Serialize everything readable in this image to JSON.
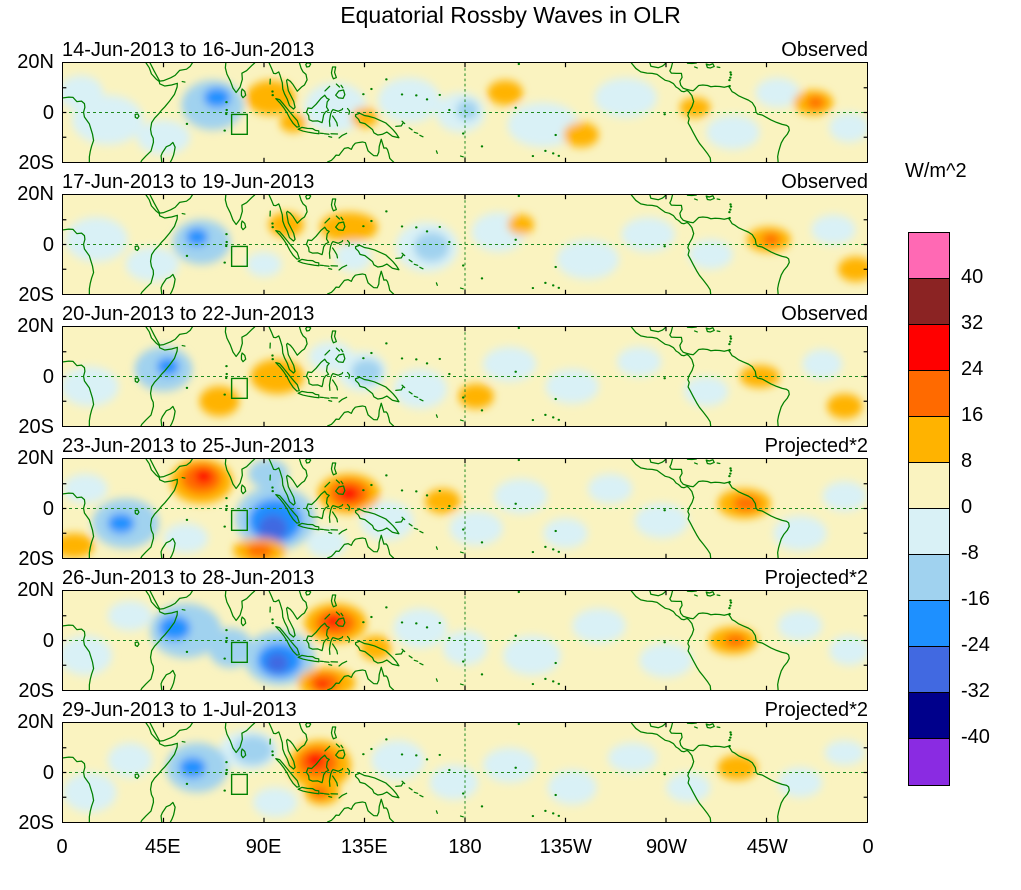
{
  "figure": {
    "title": "Equatorial Rossby Waves in OLR",
    "units_label": "W/m^2"
  },
  "axes": {
    "y_tick_labels": [
      "20N",
      "0",
      "20S"
    ],
    "x_tick_labels": [
      "0",
      "45E",
      "90E",
      "135E",
      "180",
      "135W",
      "90W",
      "45W",
      "0"
    ]
  },
  "chart_data": {
    "type": "heatmap",
    "subtype": "filled-contour longitude-latitude anomaly map panels with coastlines",
    "title": "Equatorial Rossby Waves in OLR",
    "x_axis": {
      "ticks": [
        "0",
        "45E",
        "90E",
        "135E",
        "180",
        "135W",
        "90W",
        "45W",
        "0"
      ],
      "range_deg": [
        0,
        360
      ]
    },
    "y_axis": {
      "ticks": [
        "20N",
        "0",
        "20S"
      ],
      "range_deg": [
        -20,
        20
      ]
    },
    "colorbar": {
      "label": "W/m^2",
      "tick_values": [
        40,
        32,
        24,
        16,
        8,
        0,
        -8,
        -16,
        -24,
        -32,
        -40
      ],
      "colors_top_to_bottom": [
        "#FF69B4",
        "#8B2323",
        "#FF0000",
        "#FF6A00",
        "#FFB300",
        "#FAF3C0",
        "#D9F1F6",
        "#A0D2EF",
        "#1E90FF",
        "#4169E1",
        "#00008B",
        "#8A2BE2"
      ]
    },
    "map_overlays": {
      "coastline_color": "#008000",
      "equator_dashed": true,
      "dateline_dashed": true,
      "index_box": {
        "lon": [
          75.5,
          82.5
        ],
        "lat": [
          -8.8,
          -0.8
        ]
      }
    },
    "anomaly_encoding": "[lon_deg_east, lat_deg_north, rx_deg, ry_deg, colorband_index_into_colors_top_to_bottom]",
    "panels": [
      {
        "date_range": "14-Jun-2013 to 16-Jun-2013",
        "label": "Observed",
        "anomalies": [
          [
            20,
            -3,
            16,
            10,
            6
          ],
          [
            8,
            8,
            10,
            7,
            6
          ],
          [
            45,
            -10,
            12,
            7,
            6
          ],
          [
            122,
            2,
            14,
            10,
            6
          ],
          [
            155,
            5,
            14,
            9,
            6
          ],
          [
            178,
            0,
            11,
            8,
            6
          ],
          [
            215,
            -5,
            16,
            9,
            6
          ],
          [
            252,
            6,
            14,
            8,
            6
          ],
          [
            300,
            -8,
            12,
            7,
            6
          ],
          [
            320,
            8,
            10,
            6,
            6
          ],
          [
            352,
            -6,
            9,
            6,
            6
          ],
          [
            67,
            3,
            14,
            10,
            7
          ],
          [
            181,
            1,
            5,
            4,
            7
          ],
          [
            69,
            6,
            6,
            4,
            8
          ],
          [
            93,
            6,
            11,
            7,
            4
          ],
          [
            103,
            -4,
            6,
            4,
            4
          ],
          [
            135,
            -2,
            6,
            4,
            4
          ],
          [
            198,
            8,
            8,
            5,
            4
          ],
          [
            232,
            -9,
            8,
            5,
            4
          ],
          [
            283,
            2,
            7,
            4,
            4
          ],
          [
            336,
            4,
            9,
            5,
            4
          ],
          [
            337,
            4,
            4,
            2.5,
            3
          ]
        ]
      },
      {
        "date_range": "17-Jun-2013 to 19-Jun-2013",
        "label": "Observed",
        "anomalies": [
          [
            15,
            2,
            14,
            9,
            6
          ],
          [
            40,
            -8,
            12,
            7,
            6
          ],
          [
            90,
            -8,
            8,
            5,
            6
          ],
          [
            130,
            -5,
            8,
            6,
            6
          ],
          [
            163,
            -1,
            14,
            10,
            6
          ],
          [
            195,
            5,
            12,
            8,
            6
          ],
          [
            235,
            -6,
            14,
            8,
            6
          ],
          [
            262,
            4,
            12,
            7,
            6
          ],
          [
            290,
            -4,
            10,
            6,
            6
          ],
          [
            345,
            6,
            10,
            6,
            6
          ],
          [
            62,
            1,
            13,
            9,
            7
          ],
          [
            165,
            -1,
            8,
            6,
            7
          ],
          [
            60,
            3,
            5,
            3.5,
            8
          ],
          [
            100,
            8,
            8,
            5,
            4
          ],
          [
            128,
            7,
            13,
            6,
            4
          ],
          [
            205,
            8,
            6,
            4,
            4
          ],
          [
            316,
            2,
            10,
            5,
            4
          ],
          [
            355,
            -10,
            8,
            5,
            4
          ],
          [
            317,
            2,
            4,
            2.5,
            3
          ]
        ]
      },
      {
        "date_range": "20-Jun-2013 to 22-Jun-2013",
        "label": "Observed",
        "anomalies": [
          [
            12,
            -4,
            13,
            8,
            6
          ],
          [
            120,
            8,
            10,
            6,
            6
          ],
          [
            134,
            2,
            11,
            8,
            6
          ],
          [
            160,
            -5,
            12,
            8,
            6
          ],
          [
            200,
            5,
            12,
            7,
            6
          ],
          [
            228,
            -4,
            12,
            7,
            6
          ],
          [
            258,
            6,
            10,
            6,
            6
          ],
          [
            288,
            -6,
            10,
            6,
            6
          ],
          [
            340,
            5,
            9,
            6,
            6
          ],
          [
            45,
            3,
            13,
            9,
            7
          ],
          [
            136,
            2,
            7,
            5,
            7
          ],
          [
            47,
            4,
            5,
            3.5,
            8
          ],
          [
            70,
            -10,
            9,
            6,
            4
          ],
          [
            96,
            0,
            12,
            7,
            4
          ],
          [
            185,
            -8,
            8,
            5,
            4
          ],
          [
            312,
            0,
            9,
            4.5,
            4
          ],
          [
            350,
            -12,
            8,
            5,
            4
          ]
        ]
      },
      {
        "date_range": "23-Jun-2013 to 25-Jun-2013",
        "label": "Projected*2",
        "anomalies": [
          [
            10,
            8,
            10,
            6,
            6
          ],
          [
            55,
            -12,
            10,
            6,
            6
          ],
          [
            118,
            -14,
            9,
            6,
            6
          ],
          [
            145,
            -5,
            12,
            8,
            6
          ],
          [
            185,
            -8,
            12,
            7,
            6
          ],
          [
            205,
            5,
            12,
            7,
            6
          ],
          [
            225,
            -10,
            10,
            6,
            6
          ],
          [
            245,
            8,
            10,
            6,
            6
          ],
          [
            268,
            -5,
            12,
            7,
            6
          ],
          [
            330,
            -10,
            12,
            7,
            6
          ],
          [
            350,
            5,
            10,
            6,
            6
          ],
          [
            28,
            -6,
            15,
            10,
            7
          ],
          [
            95,
            -4,
            18,
            13,
            7
          ],
          [
            92,
            14,
            9,
            6,
            7
          ],
          [
            26,
            -6,
            6,
            4,
            8
          ],
          [
            95,
            -5,
            12,
            9,
            8
          ],
          [
            94,
            -8,
            6.5,
            5.5,
            9
          ],
          [
            5,
            -15,
            9,
            5,
            4
          ],
          [
            62,
            11,
            14,
            9,
            4
          ],
          [
            88,
            -17,
            12,
            5,
            4
          ],
          [
            128,
            6,
            14,
            8,
            4
          ],
          [
            170,
            3,
            8,
            5,
            4
          ],
          [
            305,
            2,
            12,
            6,
            4
          ],
          [
            62,
            12,
            9,
            6,
            3
          ],
          [
            88,
            -17,
            6,
            3,
            3
          ],
          [
            128,
            6,
            9,
            5.5,
            3
          ],
          [
            306,
            2,
            6,
            3,
            3
          ],
          [
            63,
            13,
            4,
            3,
            2
          ],
          [
            128,
            6,
            4.5,
            3,
            2
          ]
        ]
      },
      {
        "date_range": "26-Jun-2013 to 28-Jun-2013",
        "label": "Projected*2",
        "anomalies": [
          [
            10,
            -6,
            12,
            8,
            6
          ],
          [
            30,
            10,
            10,
            6,
            6
          ],
          [
            160,
            5,
            12,
            8,
            6
          ],
          [
            180,
            -3,
            10,
            7,
            6
          ],
          [
            210,
            -6,
            13,
            8,
            6
          ],
          [
            240,
            6,
            12,
            7,
            6
          ],
          [
            270,
            -8,
            12,
            7,
            6
          ],
          [
            330,
            6,
            10,
            6,
            6
          ],
          [
            352,
            -4,
            9,
            6,
            6
          ],
          [
            55,
            4,
            16,
            11,
            7
          ],
          [
            75,
            -3,
            10,
            8,
            7
          ],
          [
            97,
            -7,
            16,
            11,
            7
          ],
          [
            50,
            5,
            7,
            5,
            8
          ],
          [
            97,
            -8,
            10,
            7,
            8
          ],
          [
            96,
            -9,
            5,
            4,
            9
          ],
          [
            122,
            7,
            14,
            8,
            4
          ],
          [
            118,
            -17,
            13,
            6,
            4
          ],
          [
            140,
            -3,
            7,
            5,
            4
          ],
          [
            300,
            0,
            11,
            5.5,
            4
          ],
          [
            122,
            7,
            9,
            5,
            3
          ],
          [
            117,
            -17,
            7,
            4,
            3
          ],
          [
            301,
            0,
            5,
            2.5,
            3
          ],
          [
            121,
            8,
            4,
            2.5,
            2
          ],
          [
            116,
            -18,
            3,
            2,
            2
          ]
        ]
      },
      {
        "date_range": "29-Jun-2013 to 1-Jul-2013",
        "label": "Projected*2",
        "anomalies": [
          [
            12,
            -8,
            12,
            8,
            6
          ],
          [
            30,
            5,
            10,
            7,
            6
          ],
          [
            83,
            9,
            13,
            8,
            6
          ],
          [
            95,
            -12,
            10,
            6,
            6
          ],
          [
            150,
            5,
            12,
            8,
            6
          ],
          [
            175,
            -4,
            11,
            7,
            6
          ],
          [
            200,
            3,
            12,
            7,
            6
          ],
          [
            228,
            -6,
            11,
            7,
            6
          ],
          [
            255,
            6,
            11,
            6,
            6
          ],
          [
            280,
            -6,
            10,
            6,
            6
          ],
          [
            330,
            -4,
            10,
            6,
            6
          ],
          [
            350,
            8,
            9,
            5,
            6
          ],
          [
            60,
            2,
            14,
            10,
            7
          ],
          [
            85,
            9,
            9,
            6,
            7
          ],
          [
            58,
            2,
            6,
            4,
            8
          ],
          [
            115,
            3,
            14,
            10,
            4
          ],
          [
            116,
            -8,
            8,
            5,
            4
          ],
          [
            302,
            2,
            9,
            5,
            4
          ],
          [
            114,
            4,
            9,
            6,
            3
          ],
          [
            115,
            -8,
            4,
            2.5,
            3
          ],
          [
            113,
            5,
            4,
            3,
            2
          ]
        ]
      }
    ]
  }
}
